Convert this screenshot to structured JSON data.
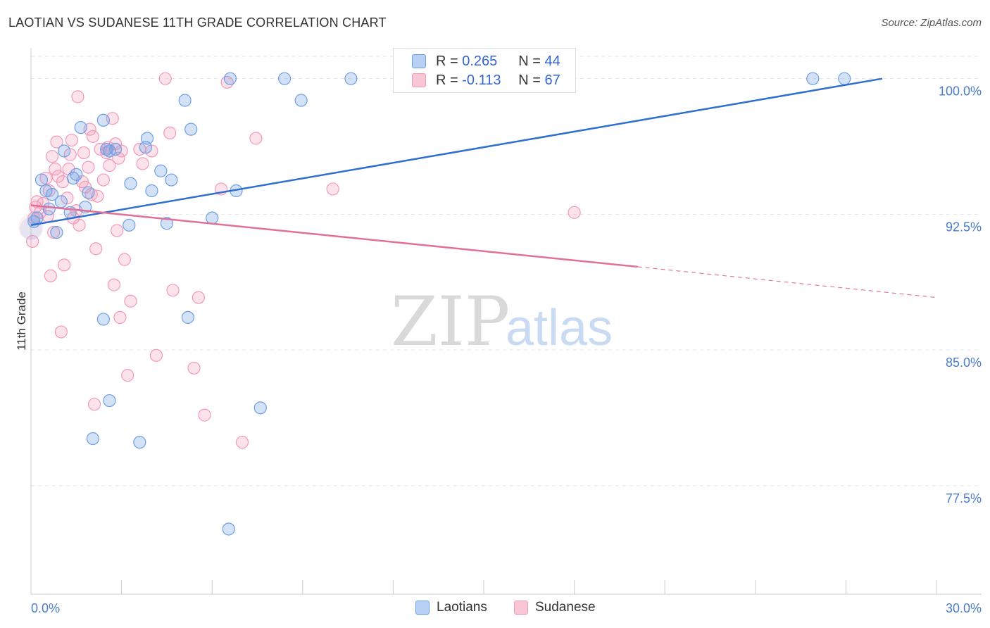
{
  "title": "LAOTIAN VS SUDANESE 11TH GRADE CORRELATION CHART",
  "source": "Source: ZipAtlas.com",
  "watermark": {
    "zip": "ZIP",
    "atlas": "atlas"
  },
  "legend": {
    "laotians": {
      "r_label": "R =",
      "r_value": "0.265",
      "n_label": "N =",
      "n_value": "44"
    },
    "sudanese": {
      "r_label": "R =",
      "r_value": "-0.113",
      "n_label": "N =",
      "n_value": "67"
    }
  },
  "bottom_legend": {
    "laotians": "Laotians",
    "sudanese": "Sudanese"
  },
  "colors": {
    "laotians": "#6e9fe6",
    "sudanese": "#f39ab8",
    "laotians_line": "#2f6fcf",
    "sudanese_line": "#e0709a"
  },
  "chart_data": {
    "type": "scatter",
    "title": "LAOTIAN VS SUDANESE 11TH GRADE CORRELATION CHART",
    "xlabel": "",
    "ylabel": "11th Grade",
    "xlim": [
      0,
      30
    ],
    "ylim": [
      71.5,
      101.7
    ],
    "x_tick_labels": [
      "0.0%",
      "30.0%"
    ],
    "y_ticks": [
      77.5,
      85.0,
      92.5,
      100.0
    ],
    "y_tick_labels": [
      "77.5%",
      "85.0%",
      "92.5%",
      "100.0%"
    ],
    "grid": true,
    "series": [
      {
        "name": "Laotians",
        "trend": {
          "x0": 0,
          "y0": 91.9,
          "x1": 28.2,
          "y1": 100.0
        },
        "points": [
          [
            0.1,
            92.1
          ],
          [
            0.2,
            92.3
          ],
          [
            0.35,
            94.4
          ],
          [
            0.5,
            93.8
          ],
          [
            0.6,
            92.8
          ],
          [
            0.7,
            93.6
          ],
          [
            0.85,
            91.5
          ],
          [
            1.0,
            93.2
          ],
          [
            1.1,
            96.0
          ],
          [
            1.3,
            92.6
          ],
          [
            1.4,
            94.5
          ],
          [
            1.5,
            94.7
          ],
          [
            1.65,
            97.3
          ],
          [
            1.8,
            92.9
          ],
          [
            1.9,
            93.7
          ],
          [
            2.4,
            97.7
          ],
          [
            2.5,
            96.1
          ],
          [
            2.6,
            96.0
          ],
          [
            2.8,
            96.1
          ],
          [
            3.3,
            94.2
          ],
          [
            3.25,
            91.9
          ],
          [
            3.8,
            96.2
          ],
          [
            3.85,
            96.7
          ],
          [
            4.0,
            93.8
          ],
          [
            4.3,
            94.9
          ],
          [
            4.5,
            92.0
          ],
          [
            4.65,
            94.4
          ],
          [
            5.1,
            98.8
          ],
          [
            5.3,
            97.2
          ],
          [
            6.0,
            92.3
          ],
          [
            6.8,
            93.8
          ],
          [
            6.6,
            100.0
          ],
          [
            8.4,
            100.0
          ],
          [
            8.95,
            98.8
          ],
          [
            10.6,
            100.0
          ],
          [
            25.9,
            100.0
          ],
          [
            26.95,
            100.0
          ],
          [
            2.4,
            86.7
          ],
          [
            2.6,
            82.2
          ],
          [
            2.05,
            80.1
          ],
          [
            3.6,
            79.9
          ],
          [
            7.6,
            81.8
          ],
          [
            6.55,
            75.1
          ],
          [
            5.2,
            86.8
          ]
        ]
      },
      {
        "name": "Sudanese",
        "trend": {
          "x0": 0,
          "y0": 93.0,
          "x1": 20.1,
          "y1": 89.6,
          "dash_to": {
            "x": 30.0,
            "y": 87.9
          }
        },
        "points": [
          [
            0.05,
            91.0
          ],
          [
            0.1,
            92.3
          ],
          [
            0.15,
            92.9
          ],
          [
            0.2,
            93.2
          ],
          [
            0.3,
            92.6
          ],
          [
            0.4,
            93.1
          ],
          [
            0.5,
            94.5
          ],
          [
            0.55,
            92.4
          ],
          [
            0.6,
            93.8
          ],
          [
            0.65,
            89.1
          ],
          [
            0.75,
            91.5
          ],
          [
            0.8,
            95.0
          ],
          [
            0.85,
            96.5
          ],
          [
            0.9,
            94.6
          ],
          [
            1.0,
            86.0
          ],
          [
            1.05,
            94.3
          ],
          [
            1.1,
            89.7
          ],
          [
            1.2,
            93.4
          ],
          [
            1.3,
            95.8
          ],
          [
            1.35,
            96.6
          ],
          [
            1.4,
            92.3
          ],
          [
            1.5,
            92.7
          ],
          [
            1.6,
            91.9
          ],
          [
            1.7,
            94.3
          ],
          [
            1.75,
            95.9
          ],
          [
            1.8,
            94.0
          ],
          [
            1.9,
            95.1
          ],
          [
            1.95,
            97.2
          ],
          [
            2.0,
            93.6
          ],
          [
            2.05,
            96.8
          ],
          [
            2.1,
            82.0
          ],
          [
            2.15,
            90.6
          ],
          [
            2.3,
            96.1
          ],
          [
            2.4,
            94.4
          ],
          [
            2.5,
            95.9
          ],
          [
            2.55,
            96.2
          ],
          [
            2.6,
            95.2
          ],
          [
            2.7,
            97.8
          ],
          [
            2.8,
            96.4
          ],
          [
            2.9,
            95.6
          ],
          [
            2.75,
            88.6
          ],
          [
            2.85,
            91.6
          ],
          [
            3.1,
            90.0
          ],
          [
            3.2,
            83.6
          ],
          [
            3.3,
            87.7
          ],
          [
            3.6,
            96.1
          ],
          [
            4.0,
            96.0
          ],
          [
            4.15,
            84.7
          ],
          [
            4.45,
            100.0
          ],
          [
            4.6,
            97.0
          ],
          [
            4.7,
            88.3
          ],
          [
            5.4,
            84.0
          ],
          [
            5.55,
            87.9
          ],
          [
            5.75,
            81.4
          ],
          [
            6.3,
            93.9
          ],
          [
            6.5,
            99.8
          ],
          [
            7.45,
            96.7
          ],
          [
            7.0,
            79.9
          ],
          [
            10.0,
            93.9
          ],
          [
            18.0,
            92.6
          ],
          [
            1.55,
            99.0
          ],
          [
            3.0,
            96.0
          ],
          [
            0.7,
            95.7
          ],
          [
            1.25,
            95.0
          ],
          [
            2.2,
            93.5
          ],
          [
            3.7,
            95.3
          ],
          [
            2.95,
            86.8
          ]
        ]
      }
    ]
  }
}
